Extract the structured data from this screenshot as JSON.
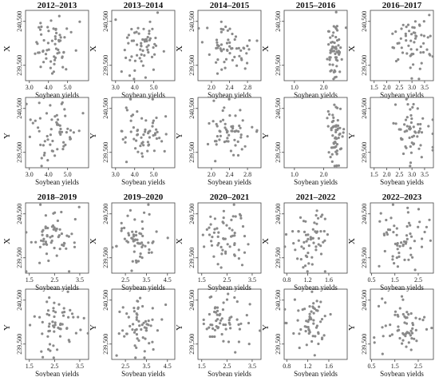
{
  "chart_data": {
    "type": "scatter",
    "point_color": "#8a8a8a",
    "y_ticks": [
      "239,500",
      "240,500"
    ],
    "y_range": [
      239150,
      240750
    ],
    "xlabel": "Soybean yields",
    "panels": [
      {
        "title": "2012–2013",
        "xlim": [
          2.8,
          6.1
        ],
        "xticks": [
          3.0,
          4.0,
          5.0
        ],
        "xtick_labels": [
          "3.0",
          "4.0",
          "5.0"
        ],
        "x_center": 4.2,
        "x_spread": 0.6,
        "seed": 11
      },
      {
        "title": "2013–2014",
        "xlim": [
          2.8,
          6.1
        ],
        "xticks": [
          3.0,
          4.0,
          5.0
        ],
        "xtick_labels": [
          "3.0",
          "4.0",
          "5.0"
        ],
        "x_center": 4.3,
        "x_spread": 0.6,
        "seed": 23
      },
      {
        "title": "2014–2015",
        "xlim": [
          1.7,
          3.1
        ],
        "xticks": [
          2.0,
          2.4,
          2.8
        ],
        "xtick_labels": [
          "2.0",
          "2.4",
          "2.8"
        ],
        "x_center": 2.35,
        "x_spread": 0.28,
        "seed": 37
      },
      {
        "title": "2015–2016",
        "xlim": [
          0.65,
          2.8
        ],
        "xticks": [
          1.0,
          2.0
        ],
        "xtick_labels": [
          "1.0",
          "2.0"
        ],
        "x_center": 2.4,
        "x_spread": 0.13,
        "seed": 41
      },
      {
        "title": "2016–2017",
        "xlim": [
          1.35,
          3.85
        ],
        "xticks": [
          1.5,
          2.0,
          2.5,
          3.0,
          3.5
        ],
        "xtick_labels": [
          "1.5",
          "2.0",
          "2.5",
          "3.0",
          "3.5"
        ],
        "x_center": 2.95,
        "x_spread": 0.4,
        "seed": 53
      },
      {
        "title": "2018–2019",
        "xlim": [
          1.35,
          3.85
        ],
        "xticks": [
          1.5,
          2.5,
          3.5
        ],
        "xtick_labels": [
          "1.5",
          "2.5",
          "3.5"
        ],
        "x_center": 2.55,
        "x_spread": 0.5,
        "seed": 67
      },
      {
        "title": "2019–2020",
        "xlim": [
          1.85,
          4.85
        ],
        "xticks": [
          2.5,
          3.5,
          4.5
        ],
        "xtick_labels": [
          "2.5",
          "3.5",
          "4.5"
        ],
        "x_center": 3.1,
        "x_spread": 0.45,
        "seed": 79
      },
      {
        "title": "2020–2021",
        "xlim": [
          1.35,
          3.85
        ],
        "xticks": [
          1.5,
          2.5,
          3.5
        ],
        "xtick_labels": [
          "1.5",
          "2.5",
          "3.5"
        ],
        "x_center": 2.4,
        "x_spread": 0.45,
        "seed": 83
      },
      {
        "title": "2021–2022",
        "xlim": [
          0.75,
          1.95
        ],
        "xticks": [
          0.8,
          1.2,
          1.6
        ],
        "xtick_labels": [
          "0.8",
          "1.2",
          "1.6"
        ],
        "x_center": 1.25,
        "x_spread": 0.2,
        "seed": 97
      },
      {
        "title": "2022–2023",
        "xlim": [
          0.45,
          3.15
        ],
        "xticks": [
          0.5,
          1.5,
          2.5
        ],
        "xtick_labels": [
          "0.5",
          "1.5",
          "2.5"
        ],
        "x_center": 1.85,
        "x_spread": 0.5,
        "seed": 101
      }
    ],
    "rows": [
      {
        "block": 0,
        "ylabel": "X"
      },
      {
        "block": 0,
        "ylabel": "Y"
      },
      {
        "block": 1,
        "ylabel": "X"
      },
      {
        "block": 1,
        "ylabel": "Y"
      }
    ],
    "points_per_panel": 60
  }
}
